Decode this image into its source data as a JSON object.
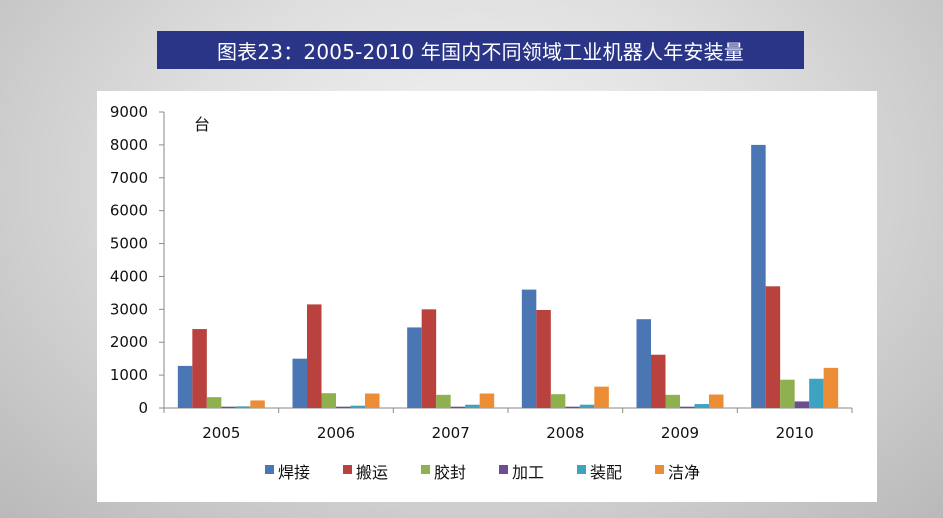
{
  "title": "图表23：2005-2010 年国内不同领域工业机器人年安装量",
  "colors": {
    "title_bg": "#2b3587",
    "series": [
      "#4a76b4",
      "#b9413e",
      "#8fb04f",
      "#6f4d95",
      "#3ea3c0",
      "#ec8c34"
    ]
  },
  "chart_data": {
    "type": "bar",
    "title": "图表23：2005-2010 年国内不同领域工业机器人年安装量",
    "unit_label": "台",
    "xlabel": "",
    "ylabel": "台",
    "ylim": [
      0,
      9000
    ],
    "yticks": [
      0,
      1000,
      2000,
      3000,
      4000,
      5000,
      6000,
      7000,
      8000,
      9000
    ],
    "grid": false,
    "legend_position": "bottom",
    "categories": [
      "2005",
      "2006",
      "2007",
      "2008",
      "2009",
      "2010"
    ],
    "series": [
      {
        "name": "焊接",
        "values": [
          1280,
          1500,
          2450,
          3600,
          2700,
          8000
        ]
      },
      {
        "name": "搬运",
        "values": [
          2400,
          3150,
          3000,
          2980,
          1620,
          3700
        ]
      },
      {
        "name": "胶封",
        "values": [
          330,
          450,
          400,
          420,
          400,
          860
        ]
      },
      {
        "name": "加工",
        "values": [
          40,
          40,
          40,
          40,
          40,
          200
        ]
      },
      {
        "name": "装配",
        "values": [
          50,
          70,
          100,
          100,
          120,
          890
        ]
      },
      {
        "name": "洁净",
        "values": [
          230,
          440,
          440,
          650,
          410,
          1220
        ]
      }
    ]
  }
}
